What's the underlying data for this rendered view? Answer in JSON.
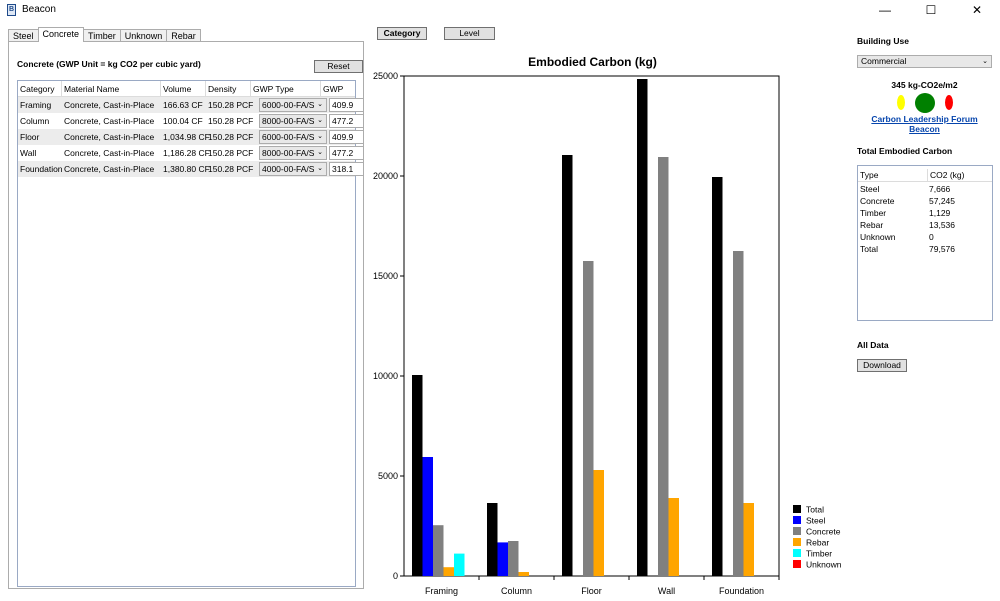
{
  "window": {
    "title": "Beacon",
    "icon": "B",
    "minimize": "—",
    "maximize": "☐",
    "close": "✕"
  },
  "tabs": [
    {
      "label": "Steel",
      "active": false
    },
    {
      "label": "Concrete",
      "active": true
    },
    {
      "label": "Timber",
      "active": false
    },
    {
      "label": "Unknown",
      "active": false
    },
    {
      "label": "Rebar",
      "active": false
    }
  ],
  "panel": {
    "title": "Concrete (GWP Unit = kg CO2 per cubic yard)",
    "reset_label": "Reset",
    "columns": [
      "Category",
      "Material Name",
      "Volume",
      "Density",
      "GWP Type",
      "GWP"
    ],
    "rows": [
      {
        "category": "Framing",
        "material": "Concrete, Cast-in-Place",
        "volume": "166.63 CF",
        "density": "150.28 PCF",
        "gwp_type": "6000-00-FA/S",
        "gwp": "409.9"
      },
      {
        "category": "Column",
        "material": "Concrete, Cast-in-Place",
        "volume": "100.04 CF",
        "density": "150.28 PCF",
        "gwp_type": "8000-00-FA/S",
        "gwp": "477.2"
      },
      {
        "category": "Floor",
        "material": "Concrete, Cast-in-Place",
        "volume": "1,034.98 CF",
        "density": "150.28 PCF",
        "gwp_type": "6000-00-FA/S",
        "gwp": "409.9"
      },
      {
        "category": "Wall",
        "material": "Concrete, Cast-in-Place",
        "volume": "1,186.28 CF",
        "density": "150.28 PCF",
        "gwp_type": "8000-00-FA/S",
        "gwp": "477.2"
      },
      {
        "category": "Foundation",
        "material": "Concrete, Cast-in-Place",
        "volume": "1,380.80 CF",
        "density": "150.28 PCF",
        "gwp_type": "4000-00-FA/S",
        "gwp": "318.1"
      }
    ]
  },
  "toggle": {
    "category_label": "Category",
    "level_label": "Level"
  },
  "chart_data": {
    "type": "bar",
    "title": "Embodied Carbon (kg)",
    "categories": [
      "Framing",
      "Column",
      "Floor",
      "Wall",
      "Foundation"
    ],
    "ylim": [
      0,
      25000
    ],
    "yticks": [
      0,
      5000,
      10000,
      15000,
      20000,
      25000
    ],
    "grid": false,
    "legend_position": "bottom-right",
    "series": [
      {
        "name": "Total",
        "color": "#000000",
        "values": [
          10050,
          3650,
          21050,
          24850,
          19950
        ]
      },
      {
        "name": "Steel",
        "color": "#0000ff",
        "values": [
          5950,
          1680,
          0,
          0,
          0
        ]
      },
      {
        "name": "Concrete",
        "color": "#808080",
        "values": [
          2540,
          1750,
          15750,
          20950,
          16250
        ]
      },
      {
        "name": "Rebar",
        "color": "#ffa500",
        "values": [
          440,
          200,
          5300,
          3900,
          3650
        ]
      },
      {
        "name": "Timber",
        "color": "#00ffff",
        "values": [
          1120,
          0,
          0,
          0,
          0
        ]
      },
      {
        "name": "Unknown",
        "color": "#ff0000",
        "values": [
          0,
          0,
          0,
          0,
          0
        ]
      }
    ]
  },
  "right": {
    "building_use_title": "Building Use",
    "building_use_value": "Commercial",
    "benchmark_value": "345 kg-CO2e/m2",
    "indicators": [
      {
        "name": "yellow",
        "color": "#ffff00"
      },
      {
        "name": "green",
        "color": "#008000"
      },
      {
        "name": "red",
        "color": "#ff0000"
      }
    ],
    "link_label": "Carbon Leadership Forum Beacon",
    "total_title": "Total Embodied Carbon",
    "table_header": [
      "Type",
      "CO2 (kg)"
    ],
    "table_rows": [
      {
        "type": "Steel",
        "value": "7,666"
      },
      {
        "type": "Concrete",
        "value": "57,245"
      },
      {
        "type": "Timber",
        "value": "1,129"
      },
      {
        "type": "Rebar",
        "value": "13,536"
      },
      {
        "type": "Unknown",
        "value": "0"
      },
      {
        "type": "Total",
        "value": "79,576"
      }
    ],
    "all_data_title": "All Data",
    "download_label": "Download"
  }
}
